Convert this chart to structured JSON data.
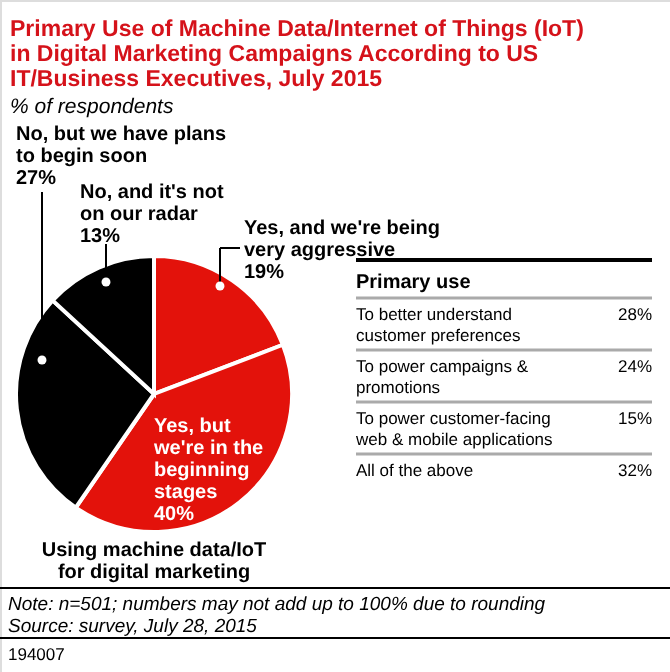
{
  "chart_data": [
    {
      "type": "pie",
      "title": "Primary Use of Machine Data/Internet of Things (IoT) in Digital Marketing Campaigns According to US IT/Business Executives, July 2015",
      "subtitle": "% of respondents",
      "categories": [
        "Yes, and we're being very aggressive",
        "Yes, but we're in the beginning stages",
        "No, but we have plans to begin soon",
        "No, and it's not on our radar"
      ],
      "values": [
        19,
        40,
        27,
        13
      ],
      "colors": [
        "#e3120b",
        "#e3120b",
        "#000000",
        "#000000"
      ],
      "value_labels": [
        "19%",
        "40%",
        "27%",
        "13%"
      ],
      "annotations": [
        "Using machine data/IoT for digital marketing",
        "Note: n=501; numbers may not add up to 100% due to rounding",
        "Source: survey, July 28, 2015",
        "194007"
      ]
    },
    {
      "type": "other",
      "title": "Primary use",
      "categories": [
        "To better understand customer preferences",
        "To power campaigns & promotions",
        "To power customer-facing web & mobile applications",
        "All of the above"
      ],
      "value_labels": [
        "28%",
        "24%",
        "15%",
        "32%"
      ]
    }
  ]
}
